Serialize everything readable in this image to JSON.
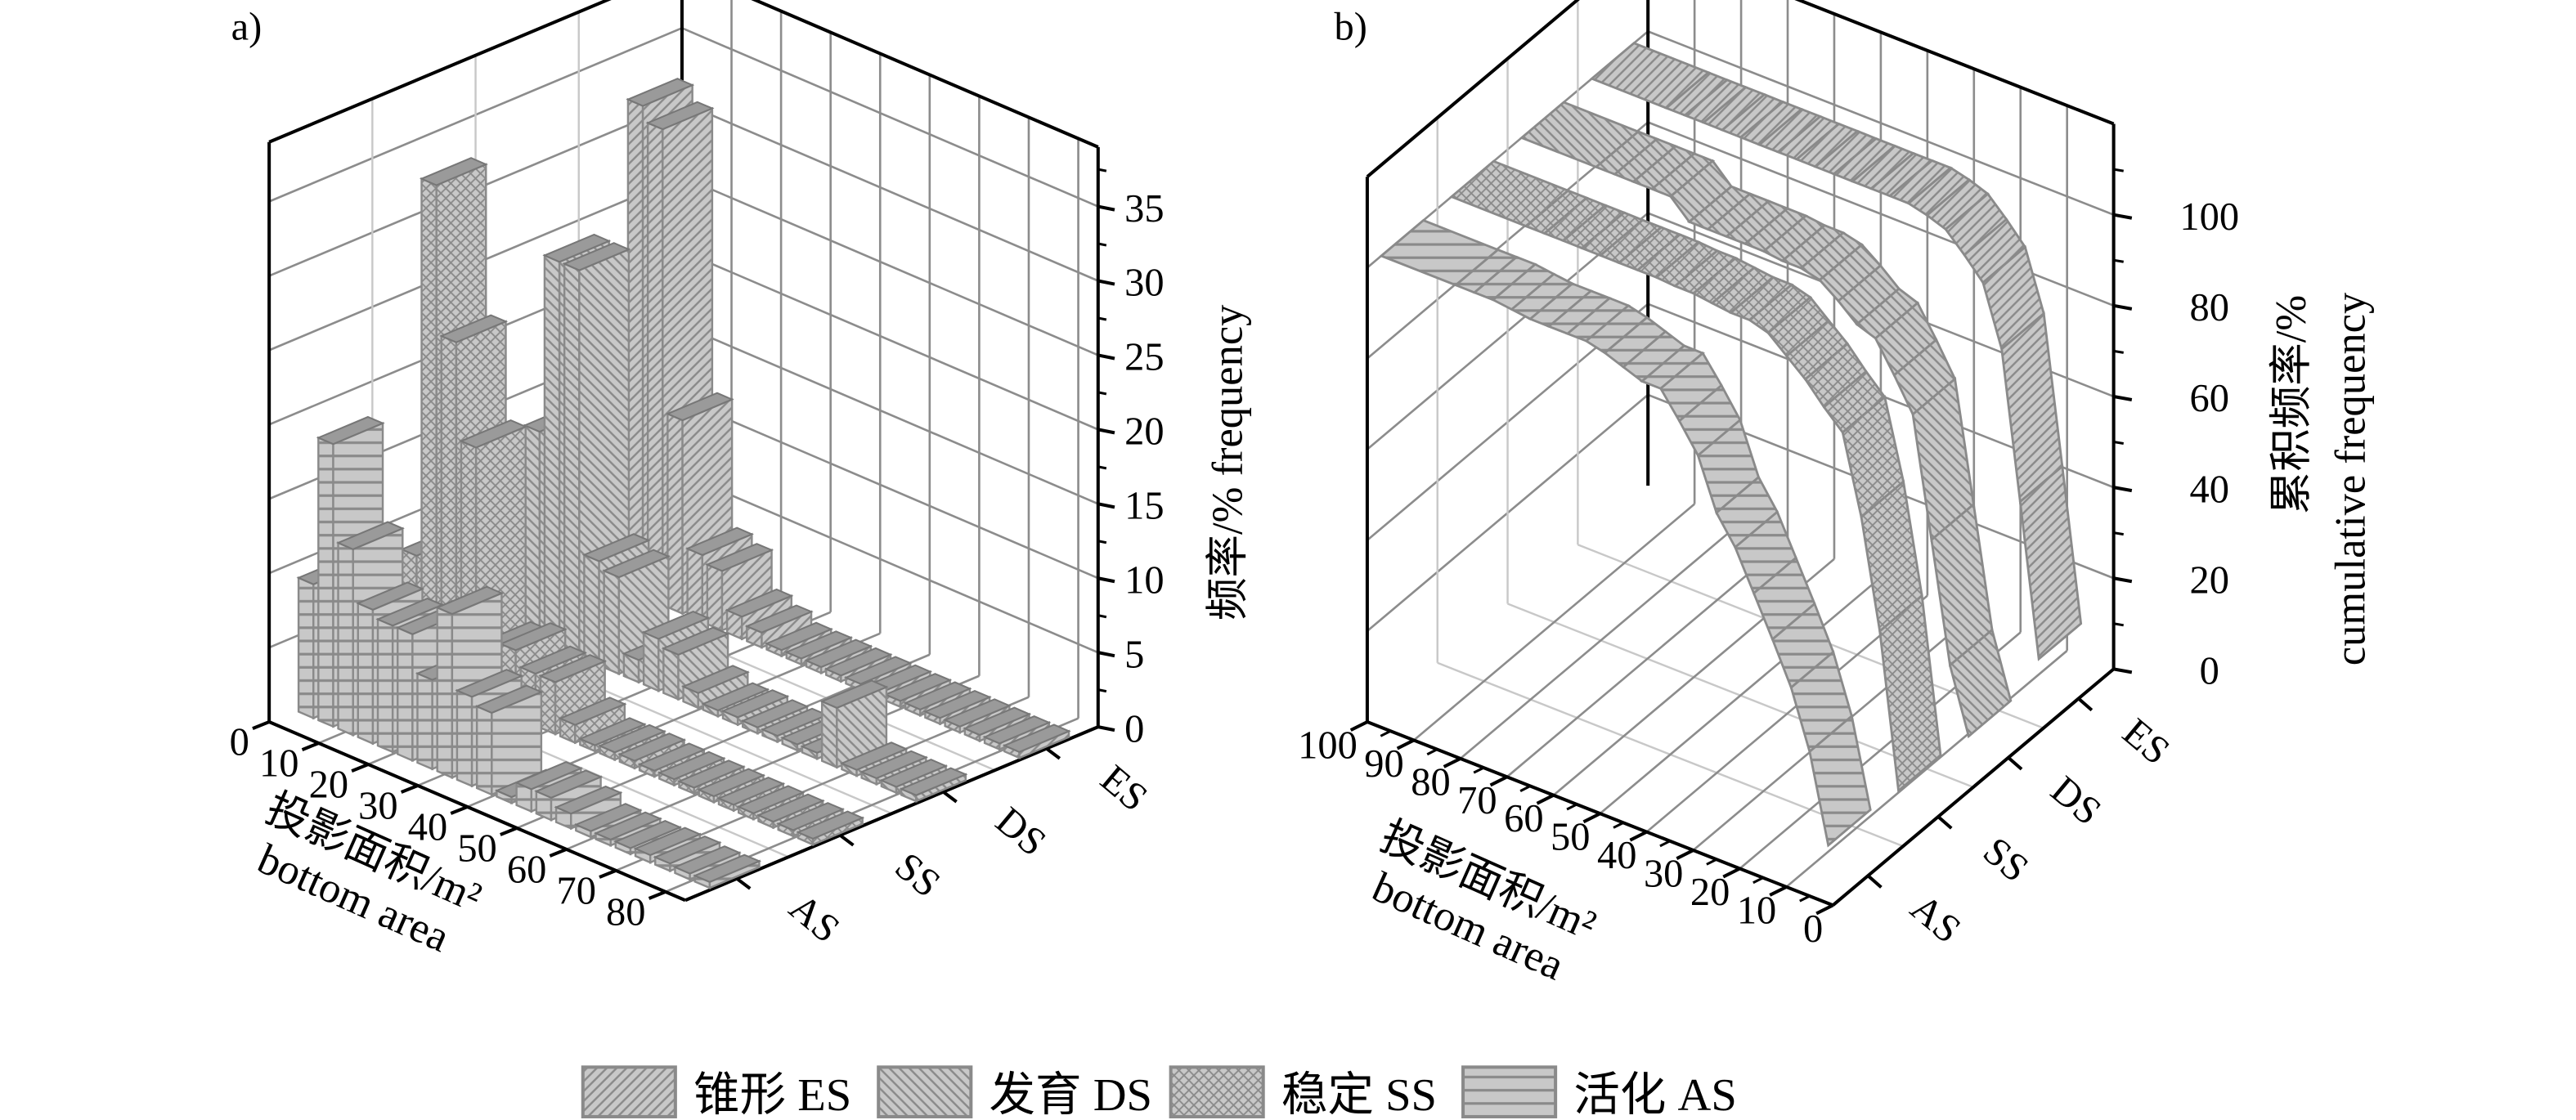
{
  "panel_labels": {
    "a": "a)",
    "b": "b)"
  },
  "colors": {
    "fill": "#c8c8c8",
    "hatch": "#8a8a8a",
    "bar_top": "#9a9a9a",
    "grid": "#8c8c8c",
    "grid_light": "#c8c8c8",
    "frame": "#000000"
  },
  "legend": [
    {
      "key": "ES",
      "label": "锥形 ES",
      "pattern": "forward-slash"
    },
    {
      "key": "DS",
      "label": "发育 DS",
      "pattern": "back-slash"
    },
    {
      "key": "SS",
      "label": "稳定 SS",
      "pattern": "cross-hatch"
    },
    {
      "key": "AS",
      "label": "活化 AS",
      "pattern": "horizontal"
    }
  ],
  "chart_data": [
    {
      "panel": "a",
      "type": "bar",
      "subtype": "3d-bar",
      "title": "",
      "xlabel_cn": "投影面积/m²",
      "xlabel_en": "bottom area",
      "zlabel": "频率/% frequency",
      "xlim": [
        0,
        84
      ],
      "zlim": [
        0,
        39
      ],
      "x_ticks": [
        "0",
        "10",
        "20",
        "30",
        "40",
        "50",
        "60",
        "70",
        "80"
      ],
      "z_ticks": [
        "0",
        "5",
        "10",
        "15",
        "20",
        "25",
        "30",
        "35"
      ],
      "categories": [
        "AS",
        "SS",
        "DS",
        "ES"
      ],
      "bin_width": 4,
      "x": [
        2,
        6,
        10,
        14,
        18,
        22,
        26,
        30,
        34,
        38,
        42,
        46,
        50,
        54,
        58,
        62,
        66,
        70,
        74,
        78,
        82
      ],
      "series": [
        {
          "name": "AS",
          "values": [
            9,
            19,
            12.5,
            9,
            8.5,
            8.5,
            6,
            11,
            6,
            5.5,
            0,
            1.5,
            1.5,
            1,
            0,
            0,
            0,
            0.5,
            0.5,
            0,
            0
          ]
        },
        {
          "name": "SS",
          "values": [
            8,
            33.5,
            23.5,
            17,
            4,
            4.5,
            3.5,
            3.5,
            1.2,
            0,
            0.5,
            0.5,
            0,
            0.3,
            0,
            0,
            0,
            0,
            0,
            0,
            0
          ]
        },
        {
          "name": "DS",
          "values": [
            7,
            14,
            26,
            26,
            7,
            6.5,
            1.5,
            3.5,
            3,
            1,
            0,
            0.5,
            0,
            0,
            0,
            0,
            4,
            0,
            0,
            0,
            0
          ]
        },
        {
          "name": "ES",
          "values": [
            11,
            33,
            32,
            13,
            4.5,
            4,
            1.5,
            1,
            0,
            0,
            0,
            0,
            0,
            0,
            0,
            0,
            0,
            0,
            0,
            0,
            0
          ]
        }
      ],
      "grid": true
    },
    {
      "panel": "b",
      "type": "area",
      "subtype": "3d-ribbon",
      "title": "",
      "xlabel_cn": "投影面积/m²",
      "xlabel_en": "bottom area",
      "zlabel_cn": "累积频率/%",
      "zlabel_en": "cumulative frequency",
      "xlim": [
        100,
        0
      ],
      "zlim": [
        0,
        120
      ],
      "x_ticks": [
        "100",
        "90",
        "80",
        "70",
        "60",
        "50",
        "40",
        "30",
        "20",
        "10",
        "0"
      ],
      "z_ticks": [
        "0",
        "20",
        "40",
        "60",
        "80",
        "100"
      ],
      "categories": [
        "AS",
        "SS",
        "DS",
        "ES"
      ],
      "x": [
        4,
        8,
        12,
        16,
        20,
        24,
        28,
        32,
        36,
        40,
        44,
        48,
        52,
        56,
        60,
        64,
        68,
        72,
        76,
        80,
        84,
        100
      ],
      "series": [
        {
          "name": "AS",
          "values": [
            9,
            28,
            40.5,
            49.5,
            58,
            66.5,
            72.5,
            83.5,
            89.5,
            95,
            95,
            96.5,
            98,
            99,
            99,
            99,
            99,
            99.5,
            100,
            100,
            100,
            100
          ]
        },
        {
          "name": "SS",
          "values": [
            8,
            41.5,
            65,
            82,
            86,
            90.5,
            94,
            97.5,
            98.7,
            98.7,
            99.2,
            99.7,
            99.7,
            100,
            100,
            100,
            100,
            100,
            100,
            100,
            100,
            100
          ]
        },
        {
          "name": "DS",
          "values": [
            7,
            21,
            47,
            73,
            80,
            86.5,
            88,
            91.5,
            94.5,
            95.5,
            95.5,
            96,
            96,
            96,
            96,
            96,
            100,
            100,
            100,
            100,
            100,
            100
          ]
        },
        {
          "name": "ES",
          "values": [
            11,
            44,
            76,
            89,
            93.5,
            97.5,
            99,
            100,
            100,
            100,
            100,
            100,
            100,
            100,
            100,
            100,
            100,
            100,
            100,
            100,
            100,
            100
          ]
        }
      ],
      "grid": true
    }
  ]
}
